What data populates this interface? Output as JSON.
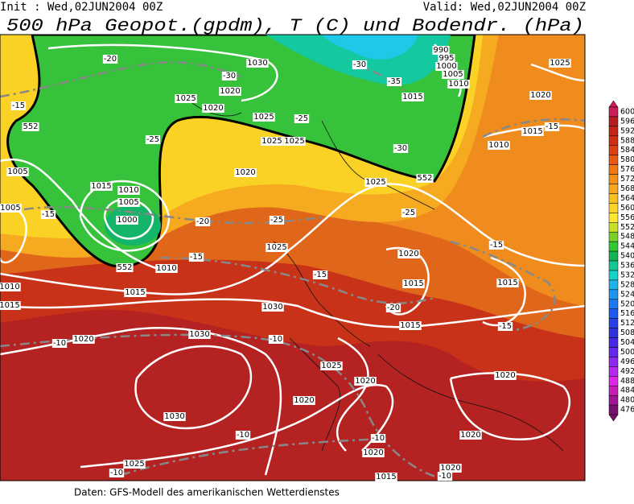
{
  "header": {
    "init": "Init : Wed,02JUN2004 00Z",
    "valid": "Valid: Wed,02JUN2004 00Z",
    "title": "500 hPa Geopot.(gpdm), T (C) und Bodendr. (hPa)"
  },
  "colorbar": {
    "levels": [
      600,
      596,
      592,
      588,
      584,
      580,
      576,
      572,
      568,
      564,
      560,
      556,
      552,
      548,
      544,
      540,
      536,
      532,
      528,
      524,
      520,
      516,
      512,
      508,
      504,
      500,
      496,
      492,
      488,
      484,
      480,
      476
    ],
    "colors": [
      "#c81e5a",
      "#b41e1e",
      "#c42418",
      "#d02e14",
      "#dc4014",
      "#e85a14",
      "#f07814",
      "#f49018",
      "#f8a81c",
      "#fac020",
      "#fcd428",
      "#fce830",
      "#c8e028",
      "#78d028",
      "#32c832",
      "#14b450",
      "#14c896",
      "#14d2c8",
      "#1eb4e6",
      "#1e96f0",
      "#1e78f0",
      "#1e5af0",
      "#2840e6",
      "#3232dc",
      "#4628e6",
      "#6428f0",
      "#8c28f0",
      "#b428f0",
      "#dc28e6",
      "#c81eb4",
      "#a01496",
      "#78106e"
    ]
  },
  "contour_labels": [
    "-20",
    "1030",
    "-30",
    "1020",
    "1025",
    "1020",
    "-15",
    "552",
    "1025",
    "-25",
    "-25",
    "1025",
    "1025",
    "1020",
    "1005",
    "1015",
    "1010",
    "1005",
    "1000",
    "-15",
    "1005",
    "-20",
    "-25",
    "1025",
    "552",
    "-30",
    "-25",
    "1025",
    "-15",
    "1010",
    "552",
    "1015",
    "1010",
    "1015",
    "-15",
    "1020",
    "1015",
    "-20",
    "1015",
    "1030",
    "-10",
    "1020",
    "1030",
    "-10",
    "1025",
    "1020",
    "1020",
    "1030",
    "-10",
    "-10",
    "1020",
    "1025",
    "-10",
    "1015",
    "1020",
    "-10",
    "1020",
    "1020",
    "-15",
    "1015",
    "-15",
    "1010",
    "1015",
    "-15",
    "1020",
    "1025",
    "1010",
    "1015",
    "-35",
    "-30",
    "990",
    "995",
    "1000",
    "1005"
  ],
  "footer": "Daten: GFS-Modell des amerikanischen Wetterdienstes"
}
